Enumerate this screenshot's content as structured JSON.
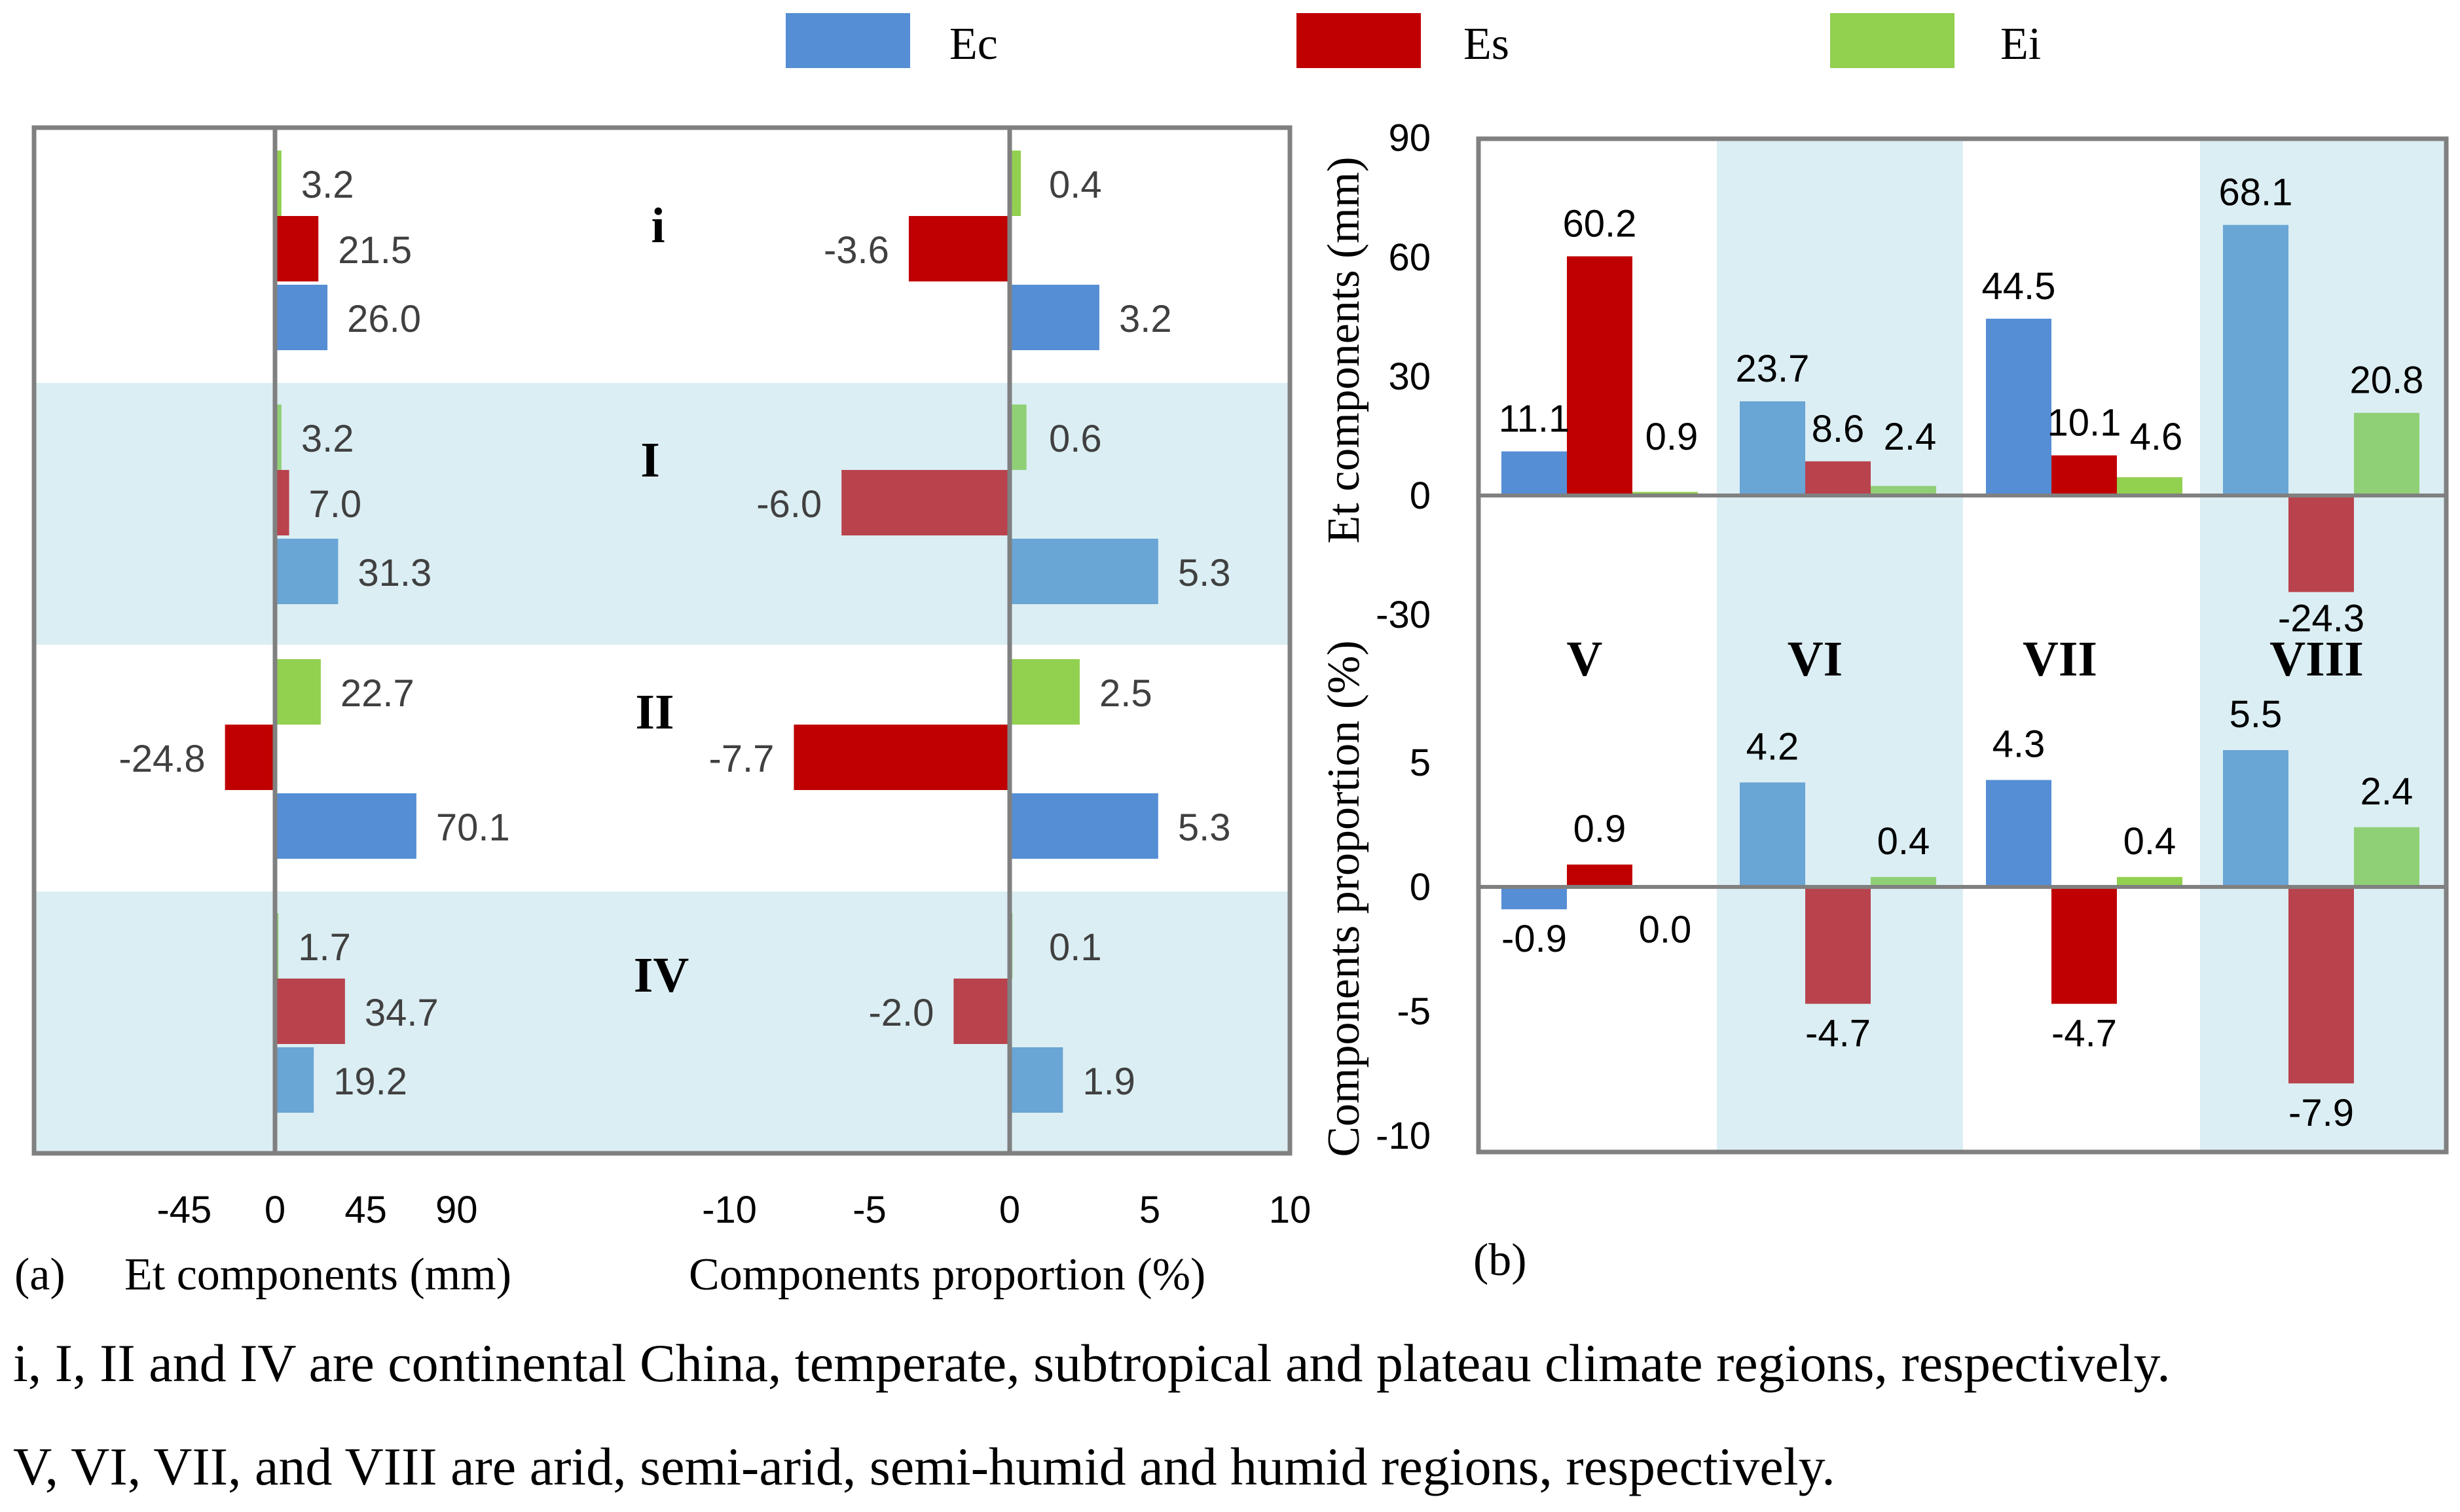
{
  "legend": [
    {
      "label": "Ec",
      "color": "#558ed5"
    },
    {
      "label": "Es",
      "color": "#c00000"
    },
    {
      "label": "Ei",
      "color": "#92d050"
    }
  ],
  "chart_data": [
    {
      "type": "bar",
      "orientation": "horizontal",
      "panel": "(a)",
      "xlabel": "Et components (mm)",
      "x_ticks": [
        "-45",
        "0",
        "45",
        "90"
      ],
      "xlim": [
        -60,
        100
      ],
      "categories": [
        "i",
        "I",
        "II",
        "IV"
      ],
      "series": [
        {
          "name": "Ec",
          "values": [
            26.0,
            31.3,
            70.1,
            19.2
          ],
          "labels": [
            "26.0",
            "31.3",
            "70.1",
            "19.2"
          ]
        },
        {
          "name": "Es",
          "values": [
            21.5,
            7.0,
            -24.8,
            34.7
          ],
          "labels": [
            "21.5",
            "7.0",
            "-24.8",
            "34.7"
          ]
        },
        {
          "name": "Ei",
          "values": [
            3.2,
            3.2,
            22.7,
            1.7
          ],
          "labels": [
            "3.2",
            "3.2",
            "22.7",
            "1.7"
          ]
        }
      ]
    },
    {
      "type": "bar",
      "orientation": "horizontal",
      "panel": "(a)",
      "xlabel": "Components proportion (%)",
      "x_ticks": [
        "-10",
        "-5",
        "0",
        "5",
        "10"
      ],
      "xlim": [
        -10,
        10
      ],
      "categories": [
        "i",
        "I",
        "II",
        "IV"
      ],
      "series": [
        {
          "name": "Ec",
          "values": [
            3.2,
            5.3,
            5.3,
            1.9
          ],
          "labels": [
            "3.2",
            "5.3",
            "5.3",
            "1.9"
          ]
        },
        {
          "name": "Es",
          "values": [
            -3.6,
            -6.0,
            -7.7,
            -2.0
          ],
          "labels": [
            "-3.6",
            "-6.0",
            "-7.7",
            "-2.0"
          ]
        },
        {
          "name": "Ei",
          "values": [
            0.4,
            0.6,
            2.5,
            0.1
          ],
          "labels": [
            "0.4",
            "0.6",
            "2.5",
            "0.1"
          ]
        }
      ]
    },
    {
      "type": "bar",
      "panel": "(b)",
      "ylabel": "Et components (mm)",
      "y_ticks": [
        "-30",
        "0",
        "30",
        "60",
        "90"
      ],
      "ylim": [
        -35,
        90
      ],
      "categories": [
        "V",
        "VI",
        "VII",
        "VIII"
      ],
      "series": [
        {
          "name": "Ec",
          "values": [
            11.1,
            23.7,
            44.5,
            68.1
          ],
          "labels": [
            "11.1",
            "23.7",
            "44.5",
            "68.1"
          ]
        },
        {
          "name": "Es",
          "values": [
            60.2,
            8.6,
            10.1,
            -24.3
          ],
          "labels": [
            "60.2",
            "8.6",
            "10.1",
            "-24.3"
          ]
        },
        {
          "name": "Ei",
          "values": [
            0.9,
            2.4,
            4.6,
            20.8
          ],
          "labels": [
            "0.9",
            "2.4",
            "4.6",
            "20.8"
          ]
        }
      ]
    },
    {
      "type": "bar",
      "panel": "(b)",
      "ylabel": "Components proportion (%)",
      "y_ticks": [
        "-10",
        "-5",
        "0",
        "5"
      ],
      "ylim": [
        -10.5,
        7.3
      ],
      "categories": [
        "V",
        "VI",
        "VII",
        "VIII"
      ],
      "series": [
        {
          "name": "Ec",
          "values": [
            -0.9,
            4.2,
            4.3,
            5.5
          ],
          "labels": [
            "-0.9",
            "4.2",
            "4.3",
            "5.5"
          ]
        },
        {
          "name": "Es",
          "values": [
            0.9,
            -4.7,
            -4.7,
            -7.9
          ],
          "labels": [
            "0.9",
            "-4.7",
            "-4.7",
            "-7.9"
          ]
        },
        {
          "name": "Ei",
          "values": [
            0.0,
            0.4,
            0.4,
            2.4
          ],
          "labels": [
            "0.0",
            "0.4",
            "0.4",
            "2.4"
          ]
        }
      ]
    }
  ],
  "panel_labels": {
    "a": "(a)",
    "b": "(b)"
  },
  "captions": [
    "i, I, II and IV are continental China, temperate, subtropical and plateau climate regions, respectively.",
    "V, VI, VII, and VIII are arid, semi-arid, semi-humid and humid regions, respectively."
  ],
  "colors": {
    "Ec": "#558ed5",
    "Es": "#c00000",
    "Ei": "#92d050",
    "Ec_shaded": "#69a5d5",
    "Es_shaded": "#b8434d",
    "Ei_shaded": "#8fd077",
    "band": "#dbeef3",
    "axis": "#808080"
  }
}
